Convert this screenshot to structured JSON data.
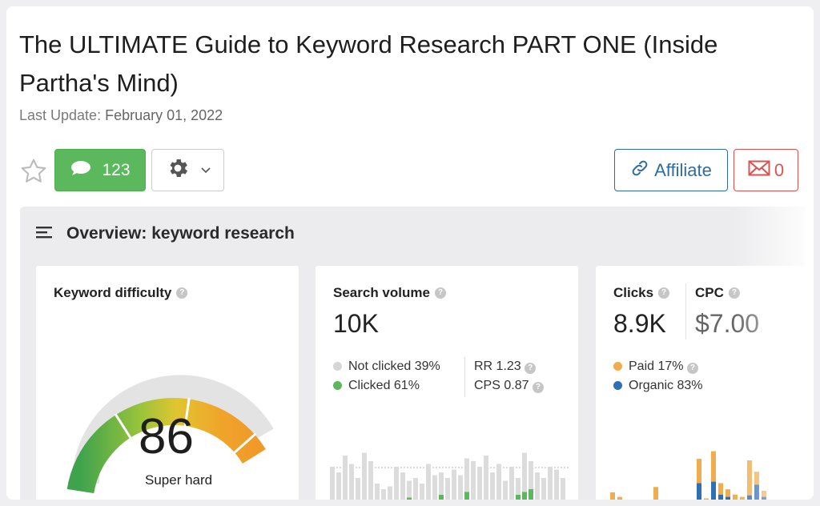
{
  "article": {
    "title": "The ULTIMATE Guide to Keyword Research PART ONE (Inside Partha's Mind)",
    "last_update_label": "Last Update:",
    "last_update_date": "February 01, 2022"
  },
  "toolbar": {
    "comments_count": "123",
    "affiliate_label": "Affiliate",
    "report_count": "0"
  },
  "overview": {
    "title": "Overview: keyword research",
    "keyword_difficulty": {
      "label": "Keyword difficulty",
      "value": "86",
      "rating": "Super hard",
      "level": 86
    },
    "search_volume": {
      "label": "Search volume",
      "value": "10K",
      "not_clicked": "Not clicked 39%",
      "clicked": "Clicked 61%",
      "rr": "RR 1.23",
      "cps": "CPS 0.87",
      "bars_gray": [
        0.7,
        0.6,
        0.9,
        0.75,
        0.5,
        0.95,
        0.8,
        0.4,
        0.3,
        0.35,
        0.7,
        0.6,
        0.45,
        0.5,
        0.4,
        0.75,
        0.55,
        0.6,
        0.5,
        0.65,
        0.55,
        0.85,
        0.8,
        0.7,
        0.9,
        0.6,
        0.75,
        0.45,
        0.7,
        0.5,
        0.95,
        0.8,
        0.6,
        0.5,
        0.7,
        0.65,
        0.5
      ],
      "bars_green": [
        0,
        0,
        0,
        0,
        0,
        0,
        0,
        0,
        0,
        0,
        0,
        0,
        0.15,
        0,
        0,
        0,
        0,
        0.2,
        0,
        0,
        0,
        0.25,
        0,
        0,
        0,
        0,
        0,
        0,
        0,
        0.2,
        0.25,
        0.3,
        0,
        0,
        0,
        0,
        0
      ]
    },
    "clicks": {
      "label": "Clicks",
      "value": "8.9K",
      "paid": "Paid 17%",
      "organic": "Organic 83%"
    },
    "cpc": {
      "label": "CPC",
      "value": "$7.00"
    },
    "colors": {
      "green_button": "#5cb85c",
      "affiliate_blue": "#2e6da4",
      "report_red": "#d9534f",
      "paid_orange": "#f0ad4e",
      "organic_blue": "#2f6fb6",
      "clicked_green": "#5cb85c"
    }
  }
}
